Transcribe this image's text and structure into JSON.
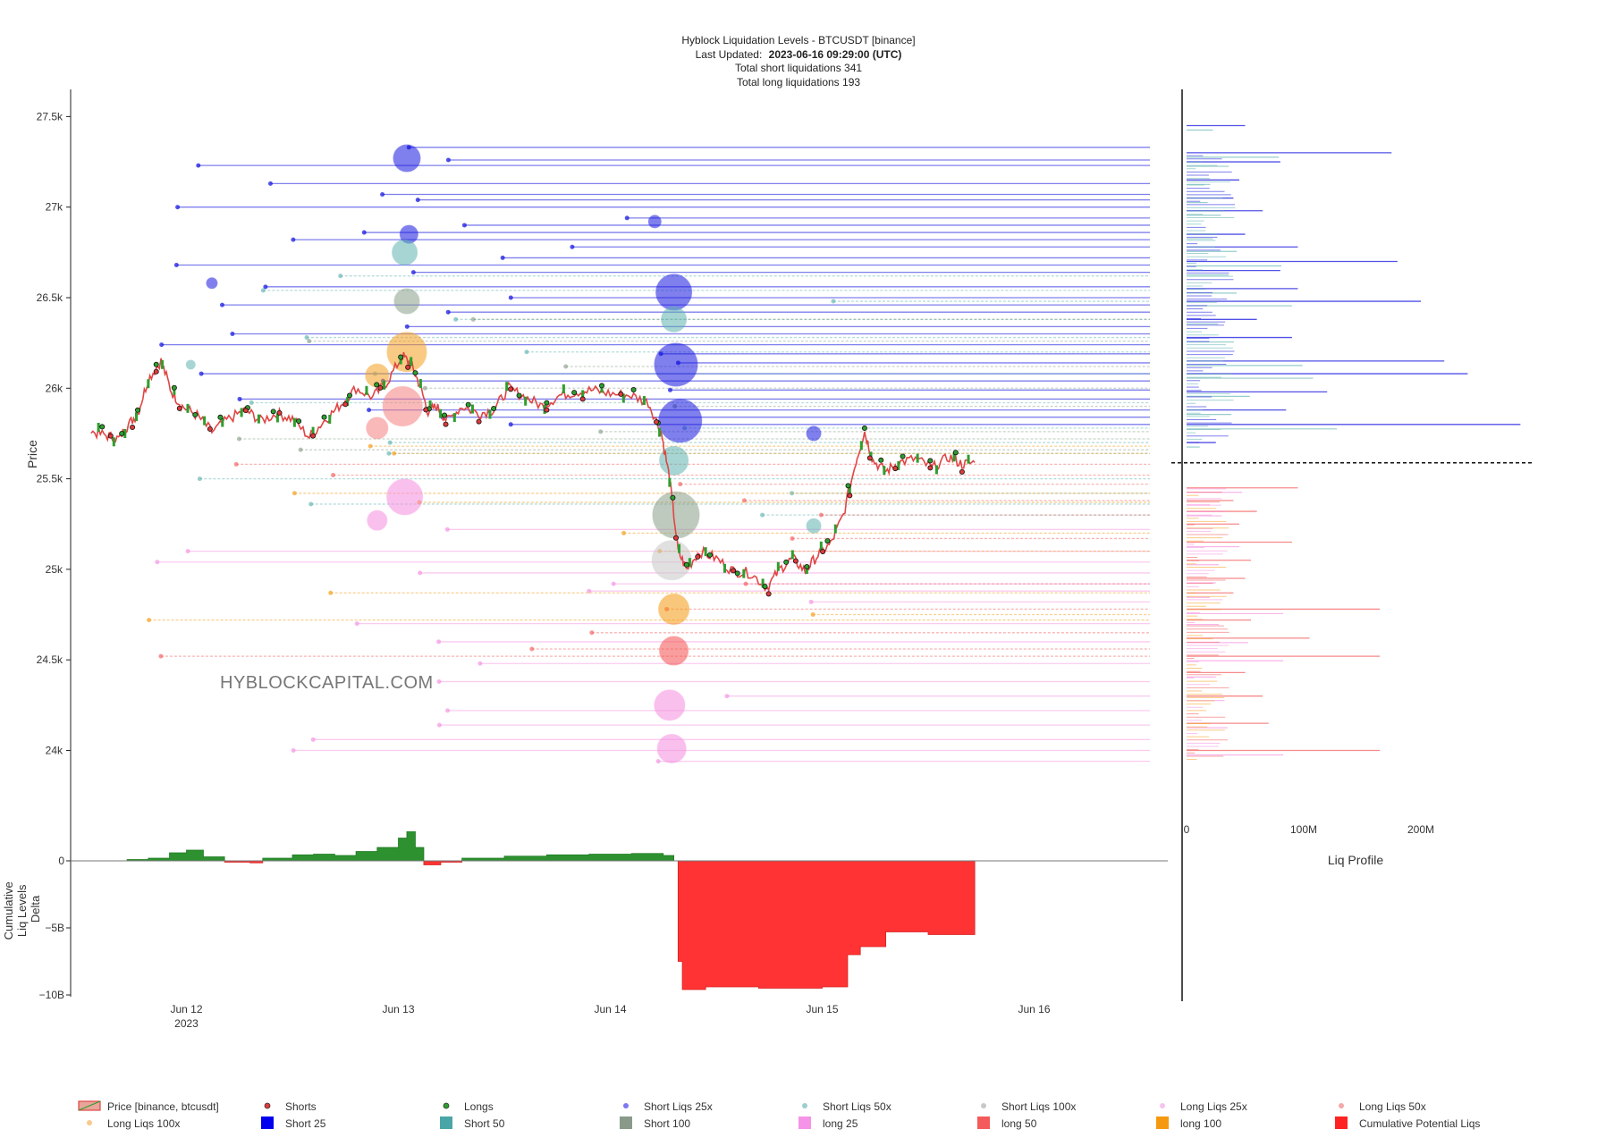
{
  "header": {
    "title": "Hyblock Liquidation Levels - BTCUSDT [binance]",
    "updated_label": "Last Updated:",
    "updated_value": "2023-06-16 09:29:00 (UTC)",
    "short_line": "Total short liquidations 341",
    "long_line": "Total long liquidations 193"
  },
  "watermark": "HYBLOCKCAPITAL.COM",
  "colors": {
    "price_up": "#2e9e2e",
    "price_down": "#e04545",
    "short25": "#1818e0",
    "short50": "#5fb3b0",
    "short100": "#8a9f8a",
    "long25": "#f58ee0",
    "long50": "#f45a5a",
    "long100": "#f5a020",
    "delta_pos": "#2e9130",
    "delta_neg": "#ff3333"
  },
  "chart_data": [
    {
      "type": "line",
      "ylabel": "Price",
      "ylim": [
        23800,
        27650
      ],
      "y_ticks": [
        24000,
        24500,
        25000,
        25500,
        26000,
        26500,
        27000,
        27500
      ],
      "y_tick_labels": [
        "24k",
        "24.5k",
        "25k",
        "25.5k",
        "26k",
        "26.5k",
        "27k",
        "27.5k"
      ],
      "x_range": [
        "2023-06-11 12:00",
        "2023-06-16 13:00"
      ],
      "x_ticks": [
        "2023-06-12",
        "2023-06-13",
        "2023-06-14",
        "2023-06-15",
        "2023-06-16"
      ],
      "x_tick_labels": [
        "Jun 12",
        "Jun 13",
        "Jun 14",
        "Jun 15",
        "Jun 16"
      ],
      "x_year_label": "2023",
      "current_price": 25588,
      "price_series": [
        {
          "t": 0.05,
          "p": 25760
        },
        {
          "t": 0.12,
          "p": 25740
        },
        {
          "t": 0.18,
          "p": 25720
        },
        {
          "t": 0.22,
          "p": 25790
        },
        {
          "t": 0.27,
          "p": 25860
        },
        {
          "t": 0.32,
          "p": 26050
        },
        {
          "t": 0.38,
          "p": 26150
        },
        {
          "t": 0.43,
          "p": 25980
        },
        {
          "t": 0.48,
          "p": 25900
        },
        {
          "t": 0.55,
          "p": 25850
        },
        {
          "t": 0.62,
          "p": 25760
        },
        {
          "t": 0.7,
          "p": 25830
        },
        {
          "t": 0.78,
          "p": 25880
        },
        {
          "t": 0.85,
          "p": 25820
        },
        {
          "t": 0.93,
          "p": 25860
        },
        {
          "t": 1.0,
          "p": 25830
        },
        {
          "t": 1.08,
          "p": 25730
        },
        {
          "t": 1.15,
          "p": 25820
        },
        {
          "t": 1.22,
          "p": 25900
        },
        {
          "t": 1.3,
          "p": 26000
        },
        {
          "t": 1.38,
          "p": 25950
        },
        {
          "t": 1.45,
          "p": 26040
        },
        {
          "t": 1.52,
          "p": 26180
        },
        {
          "t": 1.56,
          "p": 26130
        },
        {
          "t": 1.6,
          "p": 26020
        },
        {
          "t": 1.64,
          "p": 25870
        },
        {
          "t": 1.68,
          "p": 25900
        },
        {
          "t": 1.73,
          "p": 25820
        },
        {
          "t": 1.8,
          "p": 25900
        },
        {
          "t": 1.88,
          "p": 25860
        },
        {
          "t": 1.95,
          "p": 25880
        },
        {
          "t": 2.02,
          "p": 26000
        },
        {
          "t": 2.1,
          "p": 25950
        },
        {
          "t": 2.18,
          "p": 25900
        },
        {
          "t": 2.26,
          "p": 25960
        },
        {
          "t": 2.34,
          "p": 25980
        },
        {
          "t": 2.42,
          "p": 25990
        },
        {
          "t": 2.5,
          "p": 25970
        },
        {
          "t": 2.6,
          "p": 25960
        },
        {
          "t": 2.68,
          "p": 25920
        },
        {
          "t": 2.74,
          "p": 25760
        },
        {
          "t": 2.78,
          "p": 25500
        },
        {
          "t": 2.82,
          "p": 25100
        },
        {
          "t": 2.86,
          "p": 25000
        },
        {
          "t": 2.92,
          "p": 25100
        },
        {
          "t": 3.0,
          "p": 25060
        },
        {
          "t": 3.08,
          "p": 24990
        },
        {
          "t": 3.16,
          "p": 24980
        },
        {
          "t": 3.24,
          "p": 24900
        },
        {
          "t": 3.3,
          "p": 25000
        },
        {
          "t": 3.36,
          "p": 25060
        },
        {
          "t": 3.42,
          "p": 24990
        },
        {
          "t": 3.48,
          "p": 25080
        },
        {
          "t": 3.54,
          "p": 25140
        },
        {
          "t": 3.6,
          "p": 25300
        },
        {
          "t": 3.66,
          "p": 25600
        },
        {
          "t": 3.7,
          "p": 25760
        },
        {
          "t": 3.74,
          "p": 25600
        },
        {
          "t": 3.8,
          "p": 25540
        },
        {
          "t": 3.86,
          "p": 25590
        },
        {
          "t": 3.94,
          "p": 25610
        },
        {
          "t": 4.02,
          "p": 25560
        },
        {
          "t": 4.1,
          "p": 25620
        },
        {
          "t": 4.16,
          "p": 25580
        },
        {
          "t": 4.22,
          "p": 25590
        }
      ],
      "liq_levels": {
        "short_25x_prices": [
          27330,
          27260,
          27230,
          27130,
          27070,
          27040,
          27000,
          26940,
          26900,
          26860,
          26820,
          26780,
          26720,
          26680,
          26640,
          26560,
          26500,
          26460,
          26420,
          26340,
          26300,
          26240,
          26190,
          26140,
          26080,
          26040,
          25990,
          25940,
          25880,
          25840,
          25800
        ],
        "short_50x_prices": [
          26620,
          26540,
          26480,
          26380,
          26280,
          26200,
          26080,
          25920,
          25780,
          25700,
          25640,
          25500,
          25420,
          25360,
          25300
        ],
        "short_100x_prices": [
          26380,
          26260,
          26120,
          26000,
          25900,
          25760,
          25720,
          25660
        ],
        "long_25x_prices": [
          25220,
          25100,
          25040,
          24980,
          24920,
          24880,
          24820,
          24700,
          24600,
          24480,
          24380,
          24300,
          24220,
          24140,
          24060,
          24000,
          23940
        ],
        "long_50x_prices": [
          25580,
          25520,
          25470,
          25380,
          25300,
          25170,
          24920,
          24780,
          24650,
          24560,
          24520
        ],
        "long_100x_prices": [
          25680,
          25640,
          25420,
          25370,
          25200,
          25100,
          24870,
          24750,
          24720
        ]
      }
    },
    {
      "type": "area",
      "ylabel": "Cumulative Liq Levels Delta",
      "ylim": [
        -10000000000,
        1000000000
      ],
      "y_ticks": [
        0,
        -5000000000,
        -10000000000
      ],
      "y_tick_labels": [
        "0",
        "−5B",
        "−10B"
      ],
      "series": [
        {
          "t": 0.0,
          "v": 0
        },
        {
          "t": 0.2,
          "v": 0
        },
        {
          "t": 0.22,
          "v": 100000000
        },
        {
          "t": 0.32,
          "v": 200000000
        },
        {
          "t": 0.42,
          "v": 600000000
        },
        {
          "t": 0.5,
          "v": 800000000
        },
        {
          "t": 0.58,
          "v": 300000000
        },
        {
          "t": 0.68,
          "v": -100000000
        },
        {
          "t": 0.8,
          "v": -150000000
        },
        {
          "t": 0.86,
          "v": 200000000
        },
        {
          "t": 1.0,
          "v": 450000000
        },
        {
          "t": 1.1,
          "v": 500000000
        },
        {
          "t": 1.2,
          "v": 400000000
        },
        {
          "t": 1.3,
          "v": 700000000
        },
        {
          "t": 1.4,
          "v": 1000000000
        },
        {
          "t": 1.5,
          "v": 1700000000
        },
        {
          "t": 1.54,
          "v": 2200000000
        },
        {
          "t": 1.58,
          "v": 1000000000
        },
        {
          "t": 1.62,
          "v": -300000000
        },
        {
          "t": 1.7,
          "v": -100000000
        },
        {
          "t": 1.8,
          "v": 200000000
        },
        {
          "t": 2.0,
          "v": 350000000
        },
        {
          "t": 2.2,
          "v": 450000000
        },
        {
          "t": 2.4,
          "v": 500000000
        },
        {
          "t": 2.6,
          "v": 550000000
        },
        {
          "t": 2.75,
          "v": 400000000
        },
        {
          "t": 2.8,
          "v": 0
        },
        {
          "t": 2.82,
          "v": -7500000000
        },
        {
          "t": 2.84,
          "v": -9600000000
        },
        {
          "t": 2.95,
          "v": -9400000000
        },
        {
          "t": 3.2,
          "v": -9500000000
        },
        {
          "t": 3.5,
          "v": -9400000000
        },
        {
          "t": 3.62,
          "v": -7000000000
        },
        {
          "t": 3.68,
          "v": -6400000000
        },
        {
          "t": 3.8,
          "v": -5300000000
        },
        {
          "t": 4.0,
          "v": -5500000000
        },
        {
          "t": 4.22,
          "v": -5400000000
        }
      ]
    },
    {
      "type": "bar",
      "orientation": "horizontal",
      "xlabel": "Liq Profile",
      "xlim": [
        0,
        300000000
      ],
      "x_ticks": [
        0,
        100000000,
        200000000
      ],
      "x_tick_labels": [
        "0",
        "100M",
        "200M"
      ],
      "short_profile": [
        {
          "price": 27450,
          "v": 50000000
        },
        {
          "price": 27300,
          "v": 175000000
        },
        {
          "price": 27250,
          "v": 80000000
        },
        {
          "price": 27150,
          "v": 45000000
        },
        {
          "price": 27050,
          "v": 40000000
        },
        {
          "price": 26980,
          "v": 65000000
        },
        {
          "price": 26850,
          "v": 50000000
        },
        {
          "price": 26780,
          "v": 95000000
        },
        {
          "price": 26700,
          "v": 180000000
        },
        {
          "price": 26650,
          "v": 80000000
        },
        {
          "price": 26550,
          "v": 95000000
        },
        {
          "price": 26480,
          "v": 200000000
        },
        {
          "price": 26380,
          "v": 60000000
        },
        {
          "price": 26280,
          "v": 90000000
        },
        {
          "price": 26150,
          "v": 220000000
        },
        {
          "price": 26080,
          "v": 240000000
        },
        {
          "price": 25980,
          "v": 120000000
        },
        {
          "price": 25880,
          "v": 85000000
        },
        {
          "price": 25800,
          "v": 285000000
        },
        {
          "price": 25700,
          "v": 25000000
        }
      ],
      "long_profile": [
        {
          "price": 25450,
          "v": 95000000
        },
        {
          "price": 25380,
          "v": 40000000
        },
        {
          "price": 25320,
          "v": 60000000
        },
        {
          "price": 25250,
          "v": 45000000
        },
        {
          "price": 25150,
          "v": 90000000
        },
        {
          "price": 25050,
          "v": 55000000
        },
        {
          "price": 24950,
          "v": 50000000
        },
        {
          "price": 24870,
          "v": 40000000
        },
        {
          "price": 24780,
          "v": 165000000
        },
        {
          "price": 24720,
          "v": 55000000
        },
        {
          "price": 24620,
          "v": 105000000
        },
        {
          "price": 24520,
          "v": 165000000
        },
        {
          "price": 24430,
          "v": 50000000
        },
        {
          "price": 24300,
          "v": 65000000
        },
        {
          "price": 24150,
          "v": 70000000
        },
        {
          "price": 24000,
          "v": 165000000
        }
      ]
    }
  ],
  "legend": [
    {
      "label": "Price [binance, btcusdt]",
      "marker": "price",
      "color": "#e04545"
    },
    {
      "label": "Shorts",
      "marker": "dot",
      "color": "#e03a3a"
    },
    {
      "label": "Longs",
      "marker": "dot",
      "color": "#2e9e2e"
    },
    {
      "label": "Short Liqs 25x",
      "marker": "dot",
      "color": "#7b78f0"
    },
    {
      "label": "Short Liqs 50x",
      "marker": "dot",
      "color": "#9ccfcd"
    },
    {
      "label": "Short Liqs 100x",
      "marker": "dot",
      "color": "#c8c8c8"
    },
    {
      "label": "Long Liqs 25x",
      "marker": "dot",
      "color": "#f7c2ee"
    },
    {
      "label": "Long Liqs 50x",
      "marker": "dot",
      "color": "#f5a8a8"
    },
    {
      "label": "Long Liqs 100x",
      "marker": "dot",
      "color": "#f7c98a"
    },
    {
      "label": "Short 25",
      "marker": "square",
      "color": "#0000ee"
    },
    {
      "label": "Short 50",
      "marker": "square",
      "color": "#4aa6a6"
    },
    {
      "label": "Short 100",
      "marker": "square",
      "color": "#8a9a8a"
    },
    {
      "label": "long 25",
      "marker": "square",
      "color": "#f593e6"
    },
    {
      "label": "long 50",
      "marker": "square",
      "color": "#f45a5a"
    },
    {
      "label": "long 100",
      "marker": "square",
      "color": "#f59a10"
    },
    {
      "label": "Cumulative Potential Liqs",
      "marker": "square",
      "color": "#ff2222"
    }
  ]
}
